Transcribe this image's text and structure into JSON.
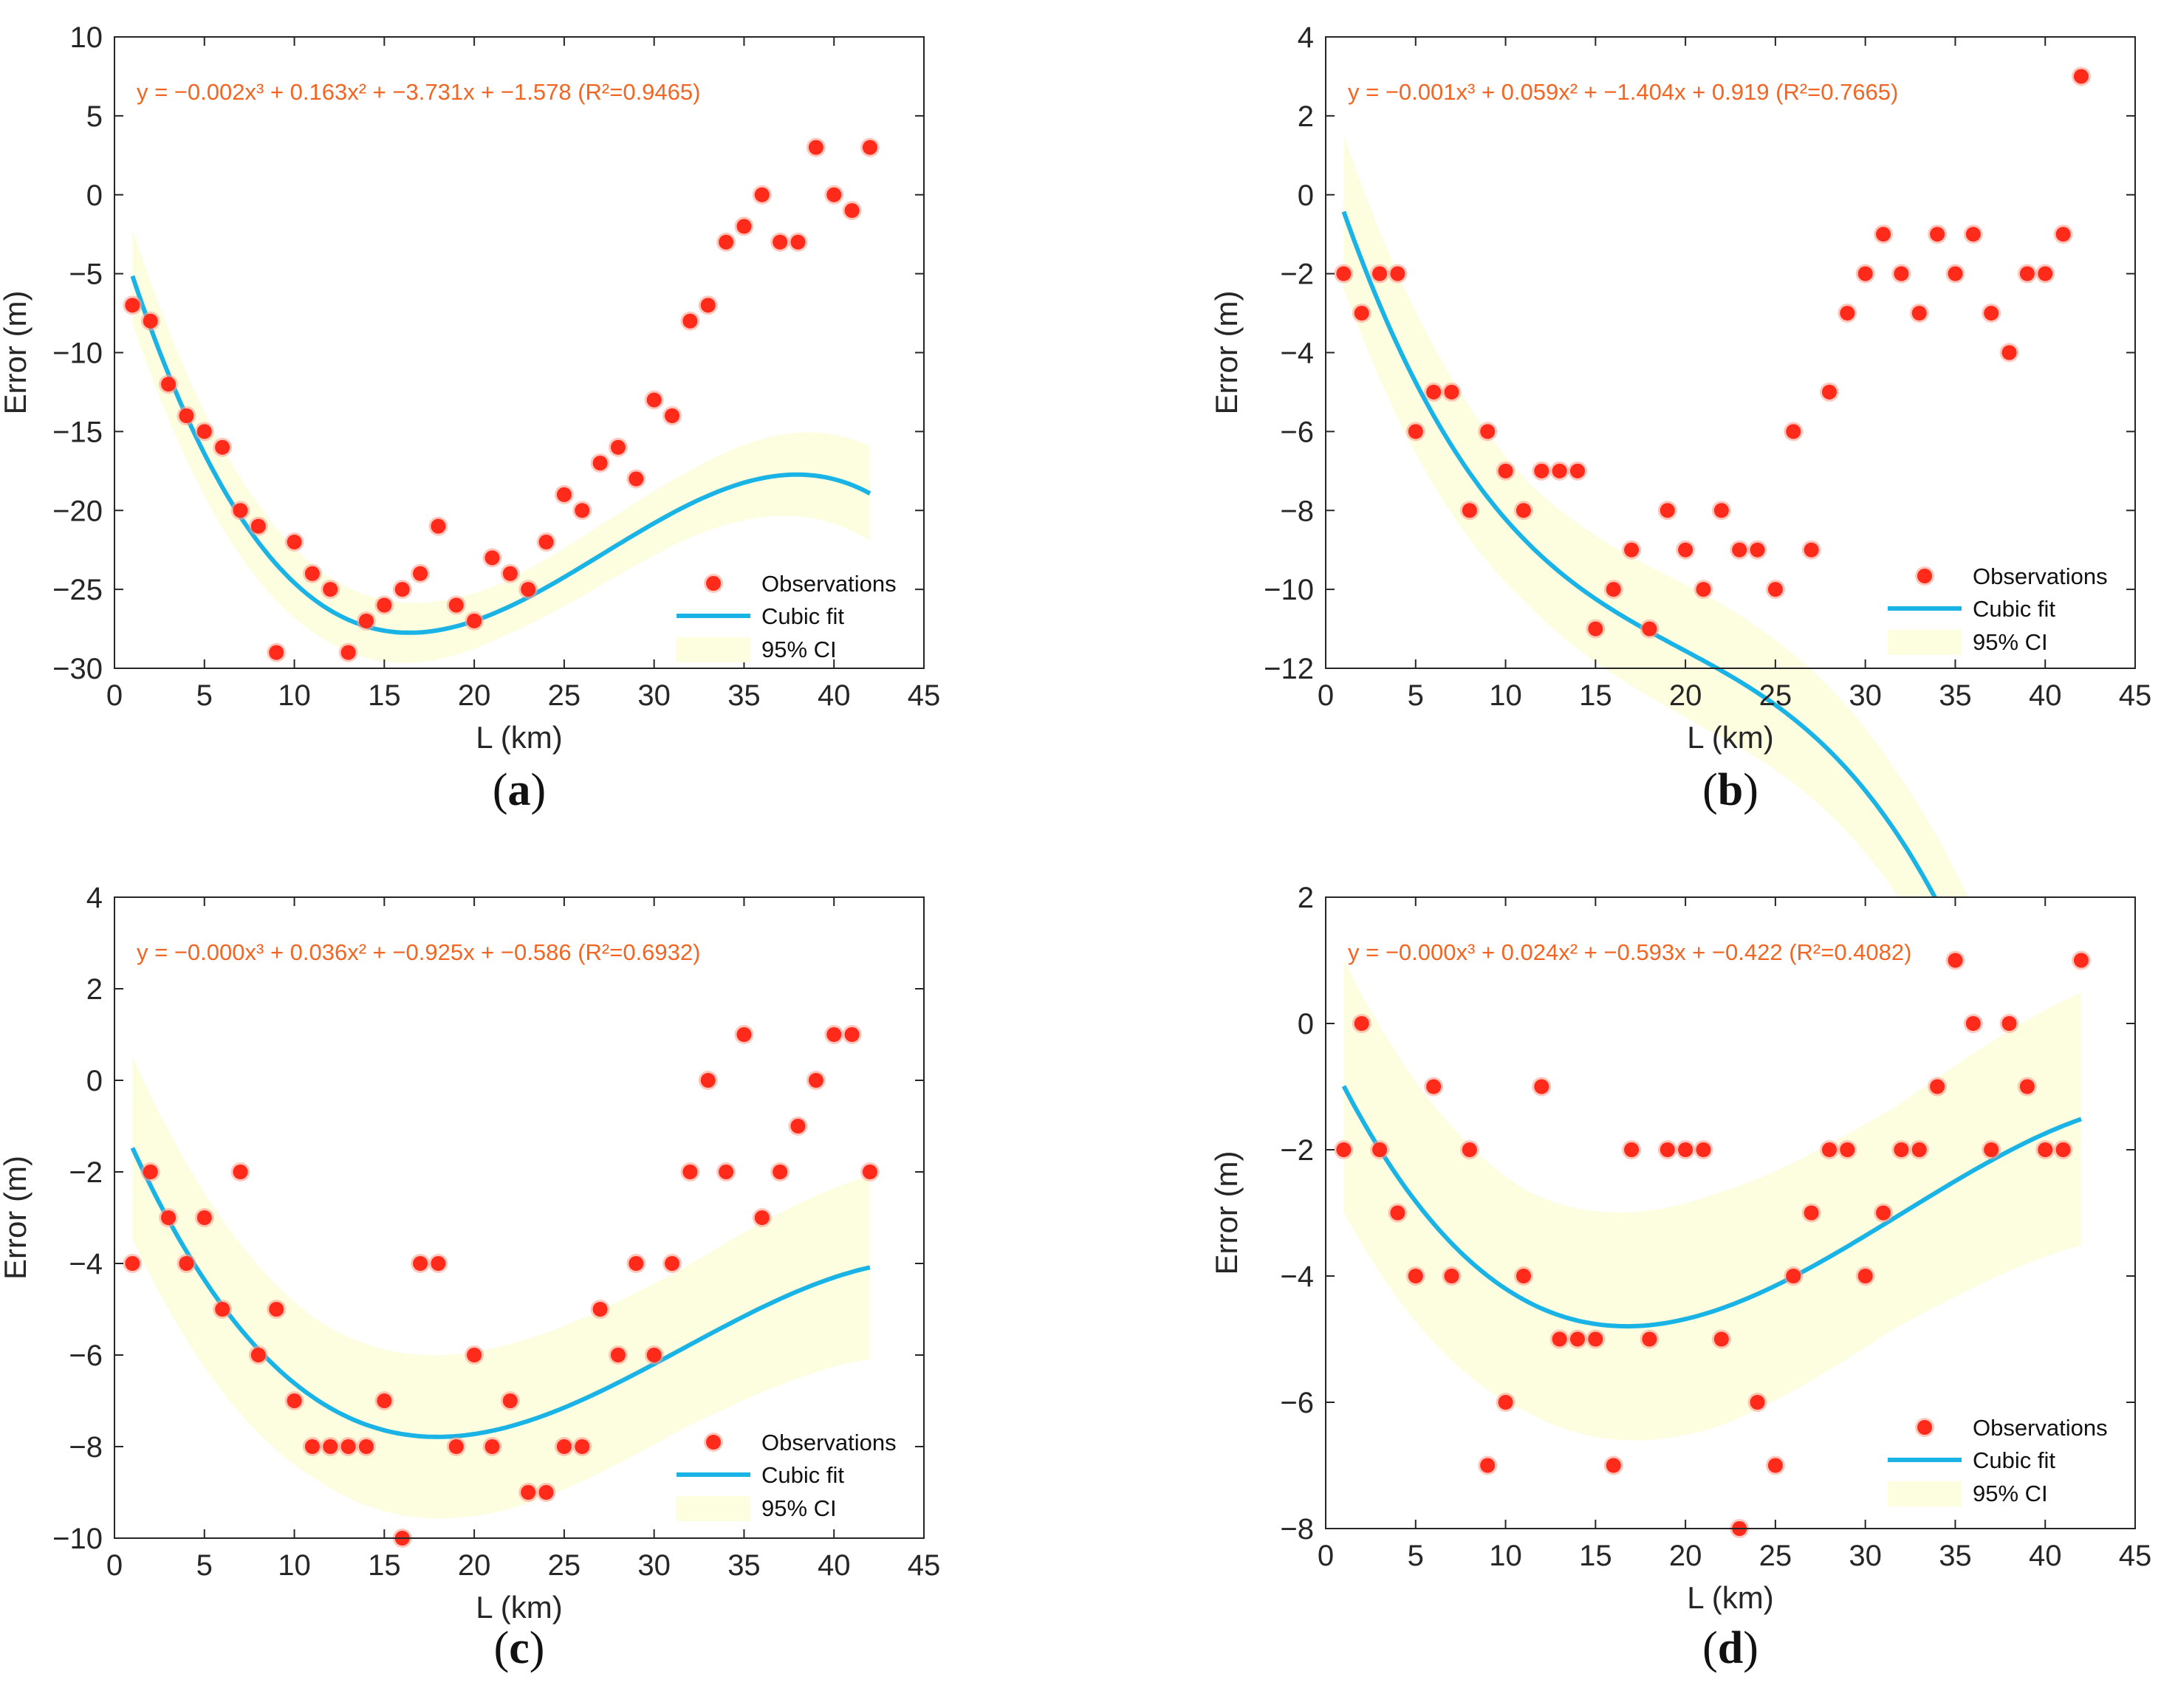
{
  "colors": {
    "marker_fill": "#ff2a1a",
    "marker_glow": "#ff9a8a",
    "fit_line": "#19b3e6",
    "ci_band": "#fdfde0",
    "equation_text": "#f26522",
    "axis": "#262626"
  },
  "chart_data": [
    {
      "type": "scatter",
      "panel": "a",
      "xlabel": "L (km)",
      "ylabel": "Error (m)",
      "xlim": [
        0,
        45
      ],
      "ylim": [
        -30,
        10
      ],
      "xticks": [
        0,
        5,
        10,
        15,
        20,
        25,
        30,
        35,
        40,
        45
      ],
      "yticks": [
        -30,
        -25,
        -20,
        -15,
        -10,
        -5,
        0,
        5,
        10
      ],
      "equation": "y = −0.002x³ + 0.163x² + −3.731x + −1.578 (R²=0.9465)",
      "fit_coeffs": [
        -0.002,
        0.163,
        -3.731,
        -1.578
      ],
      "ci_halfwidth": [
        3.0,
        2.1,
        1.7,
        2.1,
        3.0
      ],
      "legend": [
        "Observations",
        "Cubic fit",
        "95% CI"
      ],
      "legend_position": "bottom-right",
      "observations": {
        "x": [
          1,
          2,
          3,
          4,
          5,
          6,
          7,
          8,
          9,
          10,
          11,
          12,
          13,
          14,
          15,
          16,
          17,
          18,
          19,
          20,
          21,
          22,
          23,
          24,
          25,
          26,
          27,
          28,
          29,
          30,
          31,
          32,
          33,
          34,
          35,
          36,
          37,
          38,
          39,
          40,
          41,
          42
        ],
        "y": [
          -7,
          -8,
          -12,
          -14,
          -15,
          -16,
          -20,
          -21,
          -29,
          -22,
          -24,
          -25,
          -29,
          -27,
          -26,
          -25,
          -24,
          -21,
          -26,
          -27,
          -23,
          -24,
          -25,
          -22,
          -19,
          -20,
          -17,
          -16,
          -18,
          -13,
          -14,
          -8,
          -7,
          -3,
          -2,
          0,
          -3,
          -3,
          3,
          0,
          -1,
          3
        ]
      }
    },
    {
      "type": "scatter",
      "panel": "b",
      "xlabel": "L (km)",
      "ylabel": "Error (m)",
      "xlim": [
        0,
        45
      ],
      "ylim": [
        -12,
        4
      ],
      "xticks": [
        0,
        5,
        10,
        15,
        20,
        25,
        30,
        35,
        40,
        45
      ],
      "yticks": [
        -12,
        -10,
        -8,
        -6,
        -4,
        -2,
        0,
        2,
        4
      ],
      "equation": "y = −0.001x³ + 0.059x² + −1.404x + 0.919 (R²=0.7665)",
      "fit_coeffs": [
        -0.001,
        0.059,
        -1.404,
        0.919
      ],
      "ci_halfwidth": [
        1.95,
        1.55,
        1.7,
        1.55,
        1.95
      ],
      "legend": [
        "Observations",
        "Cubic fit",
        "95% CI"
      ],
      "legend_position": "bottom-right",
      "observations": {
        "x": [
          1,
          2,
          3,
          4,
          5,
          6,
          7,
          8,
          9,
          10,
          11,
          12,
          13,
          14,
          15,
          16,
          17,
          18,
          19,
          20,
          21,
          22,
          23,
          24,
          25,
          26,
          27,
          28,
          29,
          30,
          31,
          32,
          33,
          34,
          35,
          36,
          37,
          38,
          39,
          40,
          41,
          42
        ],
        "y": [
          -2,
          -3,
          -2,
          -2,
          -6,
          -5,
          -5,
          -8,
          -6,
          -7,
          -8,
          -7,
          -7,
          -7,
          -11,
          -10,
          -9,
          -11,
          -8,
          -9,
          -10,
          -8,
          -9,
          -9,
          -10,
          -6,
          -9,
          -5,
          -3,
          -2,
          -1,
          -2,
          -3,
          -1,
          -2,
          -1,
          -3,
          -4,
          -2,
          -2,
          -1,
          3
        ]
      }
    },
    {
      "type": "scatter",
      "panel": "c",
      "xlabel": "L (km)",
      "ylabel": "Error (m)",
      "xlim": [
        0,
        45
      ],
      "ylim": [
        -10,
        4
      ],
      "xticks": [
        0,
        5,
        10,
        15,
        20,
        25,
        30,
        35,
        40,
        45
      ],
      "yticks": [
        -10,
        -8,
        -6,
        -4,
        -2,
        0,
        2,
        4
      ],
      "equation": "y = −0.000x³ + 0.036x² + −0.925x + −0.586 (R²=0.6932)",
      "fit_coeffs": [
        -0.00038,
        0.036,
        -0.925,
        -0.586
      ],
      "ci_halfwidth": [
        2.0,
        1.75,
        1.8,
        1.75,
        2.0
      ],
      "legend": [
        "Observations",
        "Cubic fit",
        "95% CI"
      ],
      "legend_position": "bottom-right",
      "observations": {
        "x": [
          1,
          2,
          3,
          4,
          5,
          6,
          7,
          8,
          9,
          10,
          11,
          12,
          13,
          14,
          15,
          16,
          17,
          18,
          19,
          20,
          21,
          22,
          23,
          24,
          25,
          26,
          27,
          28,
          29,
          30,
          31,
          32,
          33,
          34,
          35,
          36,
          37,
          38,
          39,
          40,
          41,
          42
        ],
        "y": [
          -4,
          -2,
          -3,
          -4,
          -3,
          -5,
          -2,
          -6,
          -5,
          -7,
          -8,
          -8,
          -8,
          -8,
          -7,
          -10,
          -4,
          -4,
          -8,
          -6,
          -8,
          -7,
          -9,
          -9,
          -8,
          -8,
          -5,
          -6,
          -4,
          -6,
          -4,
          -2,
          0,
          -2,
          1,
          -3,
          -2,
          -1,
          0,
          1,
          1,
          -2
        ]
      }
    },
    {
      "type": "scatter",
      "panel": "d",
      "xlabel": "L (km)",
      "ylabel": "Error (m)",
      "xlim": [
        0,
        45
      ],
      "ylim": [
        -8,
        2
      ],
      "xticks": [
        0,
        5,
        10,
        15,
        20,
        25,
        30,
        35,
        40,
        45
      ],
      "yticks": [
        -8,
        -6,
        -4,
        -2,
        0,
        2
      ],
      "equation": "y = −0.000x³ + 0.024x² + −0.593x + −0.422 (R²=0.4082)",
      "fit_coeffs": [
        -0.00025,
        0.024,
        -0.593,
        -0.422
      ],
      "ci_halfwidth": [
        2.0,
        1.75,
        1.85,
        1.75,
        2.0
      ],
      "legend": [
        "Observations",
        "Cubic fit",
        "95% CI"
      ],
      "legend_position": "bottom-right",
      "observations": {
        "x": [
          1,
          2,
          3,
          4,
          5,
          6,
          7,
          8,
          9,
          10,
          11,
          12,
          13,
          14,
          15,
          16,
          17,
          18,
          19,
          20,
          21,
          22,
          23,
          24,
          25,
          26,
          27,
          28,
          29,
          30,
          31,
          32,
          33,
          34,
          35,
          36,
          37,
          38,
          39,
          40,
          41,
          42
        ],
        "y": [
          -2,
          0,
          -2,
          -3,
          -4,
          -1,
          -4,
          -2,
          -7,
          -6,
          -4,
          -1,
          -5,
          -5,
          -5,
          -7,
          -2,
          -5,
          -2,
          -2,
          -2,
          -5,
          -8,
          -6,
          -7,
          -4,
          -3,
          -2,
          -2,
          -4,
          -3,
          -2,
          -2,
          -1,
          1,
          0,
          -2,
          0,
          -1,
          -2,
          -2,
          1
        ]
      }
    }
  ],
  "panel_labels": [
    {
      "open": "(",
      "letter": "a",
      "close": ")"
    },
    {
      "open": "(",
      "letter": "b",
      "close": ")"
    },
    {
      "open": "(",
      "letter": "c",
      "close": ")"
    },
    {
      "open": "(",
      "letter": "d",
      "close": ")"
    }
  ]
}
